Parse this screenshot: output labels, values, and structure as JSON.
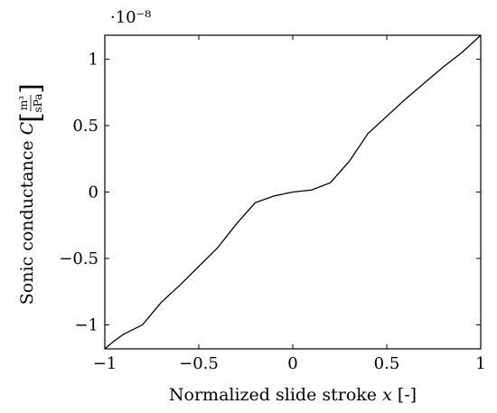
{
  "chart_data": {
    "type": "line",
    "title": "",
    "xlabel": "Normalized slide stroke x [-]",
    "ylabel": "Sonic conductance C [m³/sPa]",
    "ylabel_parts": {
      "text": "Sonic conductance ",
      "symbol": "C",
      "unit_numerator": "m³",
      "unit_denominator": "sPa"
    },
    "xlabel_parts": {
      "text": "Normalized slide stroke ",
      "symbol": "x",
      "unit": "[-]"
    },
    "y_multiplier": "·10⁻⁸",
    "xlim": [
      -1,
      1
    ],
    "ylim": [
      -1.18,
      1.18
    ],
    "grid": false,
    "x_ticks": [
      -1,
      -0.5,
      0,
      0.5,
      1
    ],
    "x_tick_labels": [
      "−1",
      "−0.5",
      "0",
      "0.5",
      "1"
    ],
    "y_ticks": [
      -1,
      -0.5,
      0,
      0.5,
      1
    ],
    "y_tick_labels": [
      "−1",
      "−0.5",
      "0",
      "0.5",
      "1"
    ],
    "series": [
      {
        "color": "#000000",
        "x": [
          -1.0,
          -0.95,
          -0.9,
          -0.8,
          -0.7,
          -0.6,
          -0.5,
          -0.4,
          -0.3,
          -0.2,
          -0.1,
          0.0,
          0.1,
          0.2,
          0.3,
          0.4,
          0.5,
          0.6,
          0.7,
          0.8,
          0.9,
          1.0
        ],
        "y": [
          -1.18,
          -1.12,
          -1.07,
          -1.0,
          -0.83,
          -0.7,
          -0.56,
          -0.42,
          -0.24,
          -0.08,
          -0.03,
          0.0,
          0.015,
          0.07,
          0.23,
          0.44,
          0.57,
          0.7,
          0.82,
          0.94,
          1.05,
          1.18
        ]
      }
    ]
  }
}
